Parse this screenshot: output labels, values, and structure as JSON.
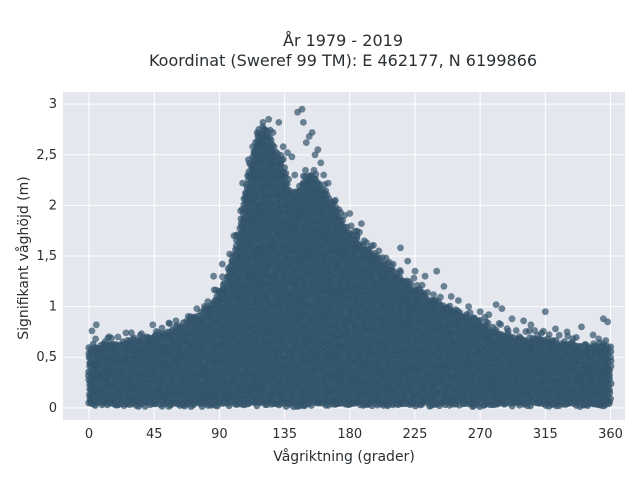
{
  "chart_data": {
    "type": "scatter",
    "title_lines": [
      "År 1979 - 2019",
      "Koordinat (Sweref 99 TM): E 462177, N 6199866"
    ],
    "xlabel": "Vågriktning (grader)",
    "ylabel": "Signifikant våghöjd (m)",
    "xlim": [
      -18,
      370
    ],
    "ylim": [
      -0.12,
      3.12
    ],
    "xticks": [
      0,
      45,
      90,
      135,
      180,
      225,
      270,
      315,
      360
    ],
    "xtick_labels": [
      "0",
      "45",
      "90",
      "135",
      "180",
      "225",
      "270",
      "315",
      "360"
    ],
    "yticks": [
      0,
      0.5,
      1,
      1.5,
      2,
      2.5,
      3
    ],
    "ytick_labels": [
      "0",
      "0,5",
      "1",
      "1,5",
      "2",
      "2,5",
      "3"
    ],
    "grid": true,
    "legend": "none",
    "colors": {
      "marker": "#33546b",
      "plot_background": "#e5e7ef",
      "grid": "#ffffff"
    },
    "envelope": {
      "x": [
        0,
        10,
        20,
        30,
        45,
        60,
        75,
        85,
        90,
        95,
        100,
        105,
        110,
        115,
        120,
        125,
        130,
        135,
        140,
        145,
        150,
        155,
        160,
        165,
        170,
        180,
        190,
        200,
        210,
        225,
        240,
        255,
        270,
        285,
        300,
        315,
        330,
        345,
        360
      ],
      "max_height": [
        0.62,
        0.63,
        0.65,
        0.68,
        0.72,
        0.8,
        0.92,
        1.05,
        1.15,
        1.3,
        1.55,
        1.9,
        2.3,
        2.65,
        2.78,
        2.7,
        2.5,
        2.4,
        2.1,
        2.2,
        2.3,
        2.3,
        2.2,
        2.1,
        1.95,
        1.75,
        1.6,
        1.5,
        1.35,
        1.2,
        1.05,
        0.95,
        0.85,
        0.75,
        0.7,
        0.68,
        0.64,
        0.62,
        0.62
      ]
    },
    "outliers": [
      {
        "x": 5,
        "y": 0.82
      },
      {
        "x": 2,
        "y": 0.76
      },
      {
        "x": 20,
        "y": 0.7
      },
      {
        "x": 44,
        "y": 0.82
      },
      {
        "x": 60,
        "y": 0.86
      },
      {
        "x": 70,
        "y": 0.9
      },
      {
        "x": 82,
        "y": 1.05
      },
      {
        "x": 86,
        "y": 1.3
      },
      {
        "x": 92,
        "y": 1.42
      },
      {
        "x": 97,
        "y": 1.52
      },
      {
        "x": 100,
        "y": 1.7
      },
      {
        "x": 106,
        "y": 2.22
      },
      {
        "x": 110,
        "y": 2.45
      },
      {
        "x": 113,
        "y": 2.58
      },
      {
        "x": 116,
        "y": 2.72
      },
      {
        "x": 120,
        "y": 2.82
      },
      {
        "x": 124,
        "y": 2.85
      },
      {
        "x": 127,
        "y": 2.72
      },
      {
        "x": 131,
        "y": 2.82
      },
      {
        "x": 134,
        "y": 2.58
      },
      {
        "x": 137,
        "y": 2.52
      },
      {
        "x": 140,
        "y": 2.48
      },
      {
        "x": 142,
        "y": 2.3
      },
      {
        "x": 144,
        "y": 2.92
      },
      {
        "x": 147,
        "y": 2.95
      },
      {
        "x": 148,
        "y": 2.82
      },
      {
        "x": 150,
        "y": 2.62
      },
      {
        "x": 152,
        "y": 2.68
      },
      {
        "x": 154,
        "y": 2.72
      },
      {
        "x": 156,
        "y": 2.5
      },
      {
        "x": 158,
        "y": 2.55
      },
      {
        "x": 160,
        "y": 2.42
      },
      {
        "x": 162,
        "y": 2.3
      },
      {
        "x": 165,
        "y": 2.22
      },
      {
        "x": 170,
        "y": 2.05
      },
      {
        "x": 175,
        "y": 1.85
      },
      {
        "x": 180,
        "y": 1.92
      },
      {
        "x": 185,
        "y": 1.7
      },
      {
        "x": 188,
        "y": 1.82
      },
      {
        "x": 190,
        "y": 1.65
      },
      {
        "x": 195,
        "y": 1.6
      },
      {
        "x": 200,
        "y": 1.55
      },
      {
        "x": 205,
        "y": 1.48
      },
      {
        "x": 210,
        "y": 1.42
      },
      {
        "x": 215,
        "y": 1.58
      },
      {
        "x": 220,
        "y": 1.45
      },
      {
        "x": 225,
        "y": 1.35
      },
      {
        "x": 232,
        "y": 1.3
      },
      {
        "x": 240,
        "y": 1.35
      },
      {
        "x": 245,
        "y": 1.2
      },
      {
        "x": 250,
        "y": 1.1
      },
      {
        "x": 255,
        "y": 1.06
      },
      {
        "x": 262,
        "y": 1.0
      },
      {
        "x": 270,
        "y": 0.95
      },
      {
        "x": 276,
        "y": 0.92
      },
      {
        "x": 281,
        "y": 1.02
      },
      {
        "x": 285,
        "y": 0.98
      },
      {
        "x": 292,
        "y": 0.88
      },
      {
        "x": 300,
        "y": 0.86
      },
      {
        "x": 305,
        "y": 0.82
      },
      {
        "x": 315,
        "y": 0.95
      },
      {
        "x": 322,
        "y": 0.78
      },
      {
        "x": 330,
        "y": 0.75
      },
      {
        "x": 340,
        "y": 0.8
      },
      {
        "x": 348,
        "y": 0.72
      },
      {
        "x": 355,
        "y": 0.88
      },
      {
        "x": 358,
        "y": 0.85
      }
    ]
  }
}
